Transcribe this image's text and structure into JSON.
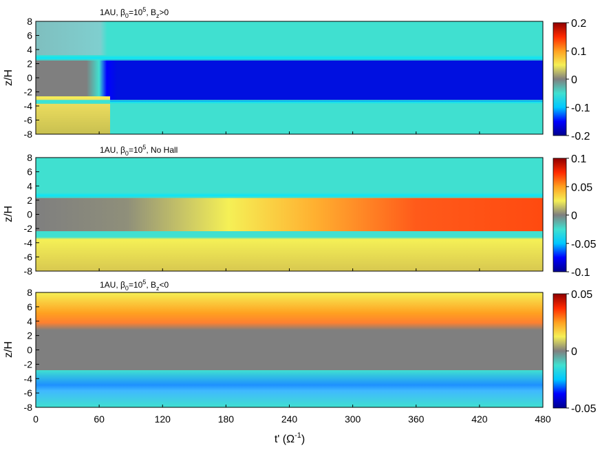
{
  "figure": {
    "x_axis_label": "t' (Ω",
    "x_axis_label_sup": "-1",
    "x_axis_label_close": ")",
    "y_axis_label": "z/H"
  },
  "colormap": {
    "stops": [
      "#00008f",
      "#0000ff",
      "#00c8ff",
      "#40e0d0",
      "#7f7f7f",
      "#f5f056",
      "#ffa020",
      "#ff2a00",
      "#8f0000"
    ]
  },
  "chart_data": [
    {
      "type": "heatmap",
      "title_parts": {
        "pre": "1AU, β",
        "sub1": "0",
        "mid": "=10",
        "sup": "5",
        "post": ", B",
        "sub2": "z",
        "end": ">0"
      },
      "xlabel": "t' (Ω-1)",
      "ylabel": "z/H",
      "xlim": [
        0,
        480
      ],
      "ylim": [
        -8,
        8
      ],
      "x_ticks": [
        "0",
        "60",
        "120",
        "180",
        "240",
        "300",
        "360",
        "420",
        "480"
      ],
      "y_ticks": [
        "8",
        "6",
        "4",
        "2",
        "0",
        "-2",
        "-4",
        "-6",
        "-8"
      ],
      "colorbar": {
        "range": [
          -0.2,
          0.2
        ],
        "ticks": [
          "0.2",
          "0.1",
          "0",
          "-0.1",
          "-0.2"
        ],
        "tick_values": [
          0.2,
          0.1,
          0,
          -0.1,
          -0.2
        ]
      },
      "field_description": [
        {
          "z": "|z|>3",
          "t": "all",
          "value": -0.07
        },
        {
          "z": "-2.5<z<2.5",
          "t": "0-50",
          "value": -0.01
        },
        {
          "z": "-2.5<z<2.5",
          "t": ">65",
          "value": -0.19
        },
        {
          "z": "-8<z<-2.5",
          "t": "0-68",
          "value": 0.03
        }
      ]
    },
    {
      "type": "heatmap",
      "title_parts": {
        "pre": "1AU, β",
        "sub1": "0",
        "mid": "=10",
        "sup": "5",
        "post": ", No Hall",
        "sub2": "",
        "end": ""
      },
      "xlabel": "t' (Ω-1)",
      "ylabel": "z/H",
      "xlim": [
        0,
        480
      ],
      "ylim": [
        -8,
        8
      ],
      "x_ticks": [
        "0",
        "60",
        "120",
        "180",
        "240",
        "300",
        "360",
        "420",
        "480"
      ],
      "y_ticks": [
        "8",
        "6",
        "4",
        "2",
        "0",
        "-2",
        "-4",
        "-6",
        "-8"
      ],
      "colorbar": {
        "range": [
          -0.1,
          0.1
        ],
        "ticks": [
          "0.1",
          "0.05",
          "0",
          "-0.05",
          "-0.1"
        ],
        "tick_values": [
          0.1,
          0.05,
          0,
          -0.05,
          -0.1
        ]
      },
      "field_description": [
        {
          "z": "z>3",
          "t": "all",
          "value": -0.035
        },
        {
          "z": "-2.5<z<2.5",
          "t": "0",
          "value": 0.0
        },
        {
          "z": "-2.5<z<2.5",
          "t": "480",
          "value": 0.07
        },
        {
          "z": "z<-2.5",
          "t": "all",
          "value": 0.025
        }
      ]
    },
    {
      "type": "heatmap",
      "title_parts": {
        "pre": "1AU, β",
        "sub1": "0",
        "mid": "=10",
        "sup": "5",
        "post": ", B",
        "sub2": "z",
        "end": "<0"
      },
      "xlabel": "t' (Ω-1)",
      "ylabel": "z/H",
      "xlim": [
        0,
        480
      ],
      "ylim": [
        -8,
        8
      ],
      "x_ticks": [
        "0",
        "60",
        "120",
        "180",
        "240",
        "300",
        "360",
        "420",
        "480"
      ],
      "y_ticks": [
        "8",
        "6",
        "4",
        "2",
        "0",
        "-2",
        "-4",
        "-6",
        "-8"
      ],
      "colorbar": {
        "range": [
          -0.05,
          0.05
        ],
        "ticks": [
          "0.05",
          "0",
          "-0.05"
        ],
        "tick_values": [
          0.05,
          0,
          -0.05
        ]
      },
      "field_description": [
        {
          "z": "3<z<8",
          "t": "all",
          "value": 0.02
        },
        {
          "z": "-2.5<z<2.5",
          "t": "all",
          "value": 0.0
        },
        {
          "z": "-8<z<-3",
          "t": "all",
          "value": -0.03
        }
      ]
    }
  ]
}
